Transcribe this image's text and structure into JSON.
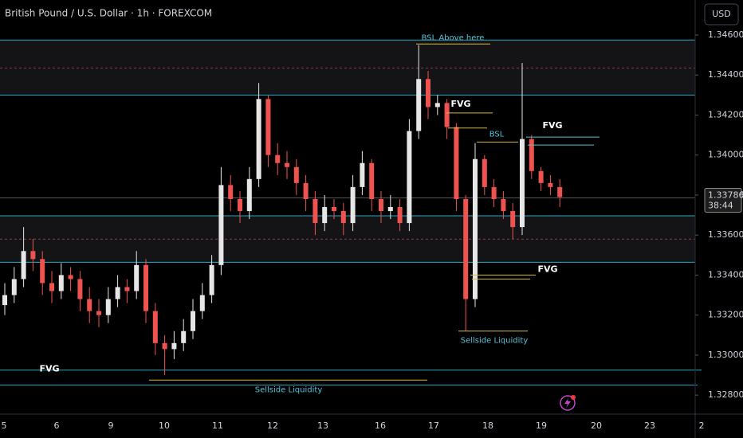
{
  "chart_data": {
    "type": "candlestick",
    "title": "British Pound / U.S. Dollar · 1h · FOREXCOM",
    "currency": "USD",
    "last_price": {
      "value": 1.33786,
      "label": "1.33786"
    },
    "countdown": "38:44",
    "up_color": "#e6e6e6",
    "down_color": "#ef5350",
    "ylim": [
      1.32705,
      1.34775
    ],
    "yticks": [
      {
        "value": 1.346,
        "label": "1.34600"
      },
      {
        "value": 1.344,
        "label": "1.34400"
      },
      {
        "value": 1.342,
        "label": "1.34200"
      },
      {
        "value": 1.34,
        "label": "1.34000"
      },
      {
        "value": 1.338,
        "label": "1.33800"
      },
      {
        "value": 1.336,
        "label": "1.33600"
      },
      {
        "value": 1.334,
        "label": "1.33400"
      },
      {
        "value": 1.332,
        "label": "1.33200"
      },
      {
        "value": 1.33,
        "label": "1.33000"
      },
      {
        "value": 1.328,
        "label": "1.32800"
      }
    ],
    "x_labels": [
      "5",
      "6",
      "9",
      "10",
      "11",
      "12",
      "13",
      "16",
      "17",
      "18",
      "19",
      "20",
      "23",
      "2"
    ],
    "open": [
      1.3325,
      1.333,
      1.3338,
      1.3352,
      1.3348,
      1.3336,
      1.3332,
      1.334,
      1.3338,
      1.3328,
      1.3322,
      1.332,
      1.3328,
      1.3334,
      1.3332,
      1.3345,
      1.3322,
      1.3306,
      1.3303,
      1.3306,
      1.3312,
      1.3322,
      1.333,
      1.3345,
      1.3385,
      1.3378,
      1.3372,
      1.3388,
      1.3428,
      1.34,
      1.3396,
      1.3394,
      1.3386,
      1.3378,
      1.3366,
      1.3374,
      1.3372,
      1.3366,
      1.3384,
      1.3396,
      1.3378,
      1.3372,
      1.3374,
      1.3366,
      1.3412,
      1.3438,
      1.3424,
      1.3426,
      1.3414,
      1.3378,
      1.3328,
      1.3398,
      1.3384,
      1.3378,
      1.3372,
      1.3364,
      1.3408,
      1.3392,
      1.3386,
      1.3384
    ],
    "high": [
      1.3336,
      1.3344,
      1.3364,
      1.3358,
      1.3352,
      1.3342,
      1.3346,
      1.3344,
      1.3342,
      1.3334,
      1.3328,
      1.3334,
      1.334,
      1.3338,
      1.3352,
      1.3348,
      1.3326,
      1.331,
      1.3312,
      1.3318,
      1.3328,
      1.3336,
      1.335,
      1.3394,
      1.339,
      1.3382,
      1.3394,
      1.3436,
      1.343,
      1.3406,
      1.3402,
      1.3398,
      1.339,
      1.3382,
      1.338,
      1.3378,
      1.3376,
      1.339,
      1.3402,
      1.3398,
      1.3382,
      1.338,
      1.3378,
      1.3418,
      1.3455,
      1.3442,
      1.343,
      1.3428,
      1.3416,
      1.338,
      1.3406,
      1.34,
      1.3388,
      1.3382,
      1.3376,
      1.3446,
      1.341,
      1.3394,
      1.339,
      1.3388
    ],
    "low": [
      1.332,
      1.3326,
      1.3334,
      1.3342,
      1.333,
      1.3326,
      1.3328,
      1.3332,
      1.3322,
      1.3316,
      1.3314,
      1.3316,
      1.3324,
      1.3326,
      1.3328,
      1.3316,
      1.33,
      1.329,
      1.3298,
      1.3302,
      1.3308,
      1.3318,
      1.3326,
      1.334,
      1.3372,
      1.3366,
      1.3368,
      1.3384,
      1.3394,
      1.339,
      1.3388,
      1.338,
      1.3372,
      1.336,
      1.3362,
      1.3368,
      1.336,
      1.3362,
      1.338,
      1.3372,
      1.3366,
      1.3368,
      1.3362,
      1.3362,
      1.3408,
      1.3418,
      1.342,
      1.3408,
      1.3372,
      1.3312,
      1.3324,
      1.338,
      1.3374,
      1.3368,
      1.3358,
      1.336,
      1.3388,
      1.3382,
      1.338,
      1.3374
    ],
    "close": [
      1.333,
      1.3338,
      1.3352,
      1.3348,
      1.3336,
      1.3332,
      1.334,
      1.3338,
      1.3328,
      1.3322,
      1.332,
      1.3328,
      1.3334,
      1.3332,
      1.3345,
      1.3322,
      1.3306,
      1.3303,
      1.3306,
      1.3312,
      1.3322,
      1.333,
      1.3345,
      1.3385,
      1.3378,
      1.3372,
      1.3388,
      1.3428,
      1.34,
      1.3396,
      1.3394,
      1.3386,
      1.3378,
      1.3366,
      1.3374,
      1.3372,
      1.3366,
      1.3384,
      1.3396,
      1.3378,
      1.3372,
      1.3374,
      1.3366,
      1.3412,
      1.3438,
      1.3424,
      1.3426,
      1.3414,
      1.3378,
      1.3328,
      1.3398,
      1.3384,
      1.3378,
      1.3372,
      1.3364,
      1.3408,
      1.3392,
      1.3386,
      1.3384,
      1.3379
    ],
    "zones": [
      {
        "top": 1.34575,
        "bottom": 1.343,
        "mid": 1.34435
      },
      {
        "top": 1.33696,
        "bottom": 1.33464,
        "mid": 1.3358
      }
    ],
    "levels": [
      1.32925,
      1.3285
    ],
    "annotations": [
      {
        "label": "BSL Above here",
        "price": 1.34555,
        "color": "#d4b84a"
      },
      {
        "label": "FVG",
        "price": 1.3421,
        "color": "#d4b84a",
        "price2": 1.34135
      },
      {
        "label": "BSL",
        "price": 1.34065,
        "color": "#d4b84a"
      },
      {
        "label": "FVG",
        "price": 1.3409,
        "color": "#4fc3d9",
        "price2": 1.3405
      },
      {
        "label": "FVG",
        "price": 1.334,
        "color": "#d4b84a",
        "price2": 1.3338
      },
      {
        "label": "Sellside Liquidity",
        "price": 1.3312,
        "color": "#d4b84a"
      },
      {
        "label": "FVG",
        "price": 1.32925,
        "color": "#4fc3d9"
      },
      {
        "label": "Sellside Liquidity",
        "price": 1.32875,
        "color": "#d4b84a"
      }
    ]
  }
}
